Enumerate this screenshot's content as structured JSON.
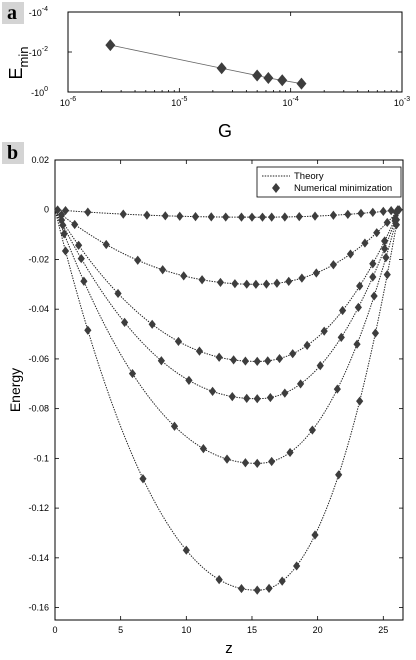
{
  "panel_a": {
    "label": "a",
    "chart_data": {
      "type": "line",
      "xlabel": "G",
      "ylabel_main": "E",
      "ylabel_sub": "min",
      "x_scale": "log",
      "y_scale": "log-negative",
      "xlim": [
        1e-06,
        0.001
      ],
      "ylim_exponent": [
        0,
        -4
      ],
      "x_ticks": [
        {
          "base": "10",
          "exp": "-6",
          "value": 1e-06
        },
        {
          "base": "10",
          "exp": "-5",
          "value": 1e-05
        },
        {
          "base": "10",
          "exp": "-4",
          "value": 0.0001
        },
        {
          "base": "10",
          "exp": "-3",
          "value": 0.001
        }
      ],
      "y_ticks": [
        {
          "base": "-10",
          "exp": "-4",
          "value": -0.0001
        },
        {
          "base": "-10",
          "exp": "-2",
          "value": -0.01
        },
        {
          "base": "-10",
          "exp": "0",
          "value": -1
        }
      ],
      "points": [
        {
          "x": 2.4e-06,
          "y": -0.0045
        },
        {
          "x": 2.4e-05,
          "y": -0.065
        },
        {
          "x": 5e-05,
          "y": -0.15
        },
        {
          "x": 6.3e-05,
          "y": -0.2
        },
        {
          "x": 8.4e-05,
          "y": -0.26
        },
        {
          "x": 0.000125,
          "y": -0.38
        }
      ],
      "colors": {
        "marker": "#3d3d3d",
        "line": "#666666"
      }
    }
  },
  "panel_b": {
    "label": "b",
    "chart_data": {
      "type": "line",
      "xlabel": "z",
      "ylabel": "Energy",
      "xlim": [
        0,
        26.5
      ],
      "ylim": [
        -0.165,
        0.02
      ],
      "x_ticks": [
        "0",
        "5",
        "10",
        "15",
        "20",
        "25"
      ],
      "y_ticks": [
        "0.02",
        "0",
        "-0.02",
        "-0.04",
        "-0.06",
        "-0.08",
        "-0.1",
        "-0.12",
        "-0.14",
        "-0.16"
      ],
      "z_max": 26.2,
      "z_center": 15.4,
      "legend": {
        "position": "top-right",
        "theory": "Theory",
        "numerical": "Numerical minimization"
      },
      "series": [
        {
          "min": -0.003
        },
        {
          "min": -0.03
        },
        {
          "min": -0.061
        },
        {
          "min": -0.076
        },
        {
          "min": -0.102
        },
        {
          "min": -0.153
        }
      ],
      "marker_z": [
        [
          0.2,
          0.8,
          2.5,
          5.2,
          7.0,
          8.4,
          9.5,
          10.7,
          11.9,
          13.0,
          14.2,
          15.0,
          15.8,
          16.5,
          17.5,
          18.6,
          19.8,
          21.2,
          22.3,
          23.3,
          24.2,
          25.0,
          25.6,
          26.1
        ],
        [
          0.5,
          1.5,
          3.9,
          6.3,
          8.2,
          9.8,
          11.2,
          12.6,
          13.7,
          14.6,
          15.3,
          16.1,
          16.9,
          17.8,
          18.8,
          19.9,
          21.2,
          22.5,
          23.6,
          24.5,
          25.3,
          26.0
        ],
        [
          0.5,
          1.8,
          4.8,
          7.4,
          9.4,
          11.0,
          12.5,
          13.6,
          14.5,
          15.4,
          16.2,
          17.1,
          18.1,
          19.2,
          20.5,
          21.9,
          23.2,
          24.2,
          25.1,
          25.9
        ],
        [
          0.6,
          2.0,
          5.3,
          8.1,
          10.2,
          12.0,
          13.5,
          14.6,
          15.4,
          16.4,
          17.5,
          18.7,
          20.2,
          21.8,
          23.1,
          24.2,
          25.1,
          25.9
        ],
        [
          0.7,
          2.2,
          5.9,
          9.1,
          11.3,
          13.1,
          14.5,
          15.4,
          16.5,
          17.9,
          19.6,
          21.5,
          23.0,
          24.3,
          25.2,
          26.0
        ],
        [
          0.8,
          2.5,
          6.7,
          10.0,
          12.5,
          14.2,
          15.4,
          16.3,
          17.3,
          18.4,
          19.8,
          21.6,
          23.2,
          24.4,
          25.3,
          26.0
        ]
      ],
      "colors": {
        "marker": "#3d3d3d",
        "line": "#222222"
      }
    }
  }
}
